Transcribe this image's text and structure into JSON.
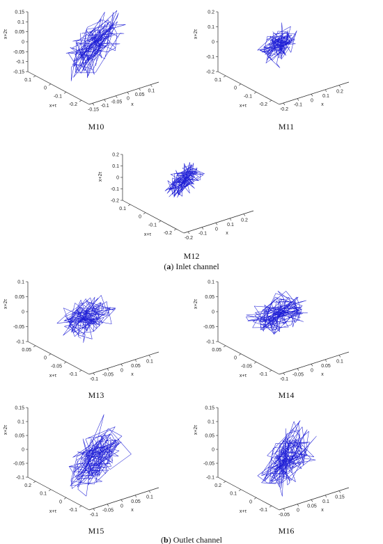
{
  "colors": {
    "trajectory": "#1f1fd6",
    "axes": "#222222"
  },
  "group_captions": [
    {
      "letter": "a",
      "text": "Inlet channel"
    },
    {
      "letter": "b",
      "text": "Outlet channel"
    }
  ],
  "chart_data": [
    {
      "type": "scatter",
      "subtype": "3d-phase-space-line",
      "panel_label": "M10",
      "xlabel": "x",
      "ylabel": "x+τ",
      "zlabel": "x+2τ",
      "x_ticks": [
        "-0.15",
        "-0.1",
        "-0.05",
        "0",
        "0.05",
        "0.1"
      ],
      "y_ticks": [
        "-0.2",
        "-0.1",
        "0",
        "0.1"
      ],
      "z_ticks": [
        "-0.15",
        "-0.1",
        "-0.05",
        "0",
        "0.05",
        "0.1",
        "0.15"
      ],
      "xlim": [
        -0.15,
        0.1
      ],
      "ylim": [
        -0.2,
        0.15
      ],
      "zlim": [
        -0.15,
        0.15
      ],
      "attractor": {
        "center": [
          -0.02,
          -0.02,
          0.0
        ],
        "spread": [
          0.07,
          0.07,
          0.09
        ],
        "points": 170
      }
    },
    {
      "type": "scatter",
      "subtype": "3d-phase-space-line",
      "panel_label": "M11",
      "xlabel": "x",
      "ylabel": "x+τ",
      "zlabel": "x+2τ",
      "x_ticks": [
        "-0.2",
        "-0.1",
        "0",
        "0.1",
        "0.2"
      ],
      "y_ticks": [
        "-0.2",
        "-0.1",
        "0",
        "0.1"
      ],
      "z_ticks": [
        "-0.2",
        "-0.1",
        "0",
        "0.1",
        "0.2"
      ],
      "xlim": [
        -0.2,
        0.2
      ],
      "ylim": [
        -0.2,
        0.15
      ],
      "zlim": [
        -0.2,
        0.2
      ],
      "attractor": {
        "center": [
          0.0,
          0.0,
          0.0
        ],
        "spread": [
          0.06,
          0.05,
          0.07
        ],
        "points": 150
      }
    },
    {
      "type": "scatter",
      "subtype": "3d-phase-space-line",
      "panel_label": "M12",
      "xlabel": "x",
      "ylabel": "x+τ",
      "zlabel": "x+2τ",
      "x_ticks": [
        "-0.2",
        "-0.1",
        "0",
        "0.1",
        "0.2"
      ],
      "y_ticks": [
        "-0.2",
        "-0.1",
        "0",
        "0.1"
      ],
      "z_ticks": [
        "-0.2",
        "-0.1",
        "0",
        "0.1",
        "0.2"
      ],
      "xlim": [
        -0.2,
        0.2
      ],
      "ylim": [
        -0.2,
        0.15
      ],
      "zlim": [
        -0.2,
        0.2
      ],
      "attractor": {
        "center": [
          0.0,
          0.0,
          0.0
        ],
        "spread": [
          0.06,
          0.05,
          0.08
        ],
        "points": 150
      }
    },
    {
      "type": "scatter",
      "subtype": "3d-phase-space-line",
      "panel_label": "M13",
      "xlabel": "x",
      "ylabel": "x+τ",
      "zlabel": "x+2τ",
      "x_ticks": [
        "-0.1",
        "-0.05",
        "0",
        "0.05",
        "0.1"
      ],
      "y_ticks": [
        "-0.1",
        "-0.05",
        "0",
        "0.05"
      ],
      "z_ticks": [
        "-0.1",
        "-0.05",
        "0",
        "0.05",
        "0.1"
      ],
      "xlim": [
        -0.1,
        0.1
      ],
      "ylim": [
        -0.1,
        0.07
      ],
      "zlim": [
        -0.1,
        0.1
      ],
      "attractor": {
        "center": [
          0.0,
          0.0,
          -0.01
        ],
        "spread": [
          0.05,
          0.04,
          0.035
        ],
        "points": 160
      }
    },
    {
      "type": "scatter",
      "subtype": "3d-phase-space-line",
      "panel_label": "M14",
      "xlabel": "x",
      "ylabel": "x+τ",
      "zlabel": "x+2τ",
      "x_ticks": [
        "-0.1",
        "-0.05",
        "0",
        "0.05",
        "0.1"
      ],
      "y_ticks": [
        "-0.1",
        "-0.05",
        "0",
        "0.05"
      ],
      "z_ticks": [
        "-0.1",
        "-0.05",
        "0",
        "0.05",
        "0.1"
      ],
      "xlim": [
        -0.1,
        0.1
      ],
      "ylim": [
        -0.1,
        0.07
      ],
      "zlim": [
        -0.1,
        0.1
      ],
      "attractor": {
        "center": [
          0.0,
          0.0,
          0.0
        ],
        "spread": [
          0.05,
          0.04,
          0.03
        ],
        "points": 170
      }
    },
    {
      "type": "scatter",
      "subtype": "3d-phase-space-line",
      "panel_label": "M15",
      "xlabel": "x",
      "ylabel": "x+τ",
      "zlabel": "x+2τ",
      "x_ticks": [
        "-0.1",
        "-0.05",
        "0",
        "0.05",
        "0.1"
      ],
      "y_ticks": [
        "-0.1",
        "0",
        "0.1",
        "0.2"
      ],
      "z_ticks": [
        "-0.1",
        "-0.05",
        "0",
        "0.05",
        "0.1",
        "0.15"
      ],
      "xlim": [
        -0.1,
        0.1
      ],
      "ylim": [
        -0.1,
        0.2
      ],
      "zlim": [
        -0.1,
        0.15
      ],
      "attractor": {
        "center": [
          -0.01,
          0.02,
          0.0
        ],
        "spread": [
          0.05,
          0.06,
          0.075
        ],
        "points": 180
      }
    },
    {
      "type": "scatter",
      "subtype": "3d-phase-space-line",
      "panel_label": "M16",
      "xlabel": "x",
      "ylabel": "x+τ",
      "zlabel": "x+2τ",
      "x_ticks": [
        "-0.05",
        "0",
        "0.05",
        "0.1",
        "0.15"
      ],
      "y_ticks": [
        "-0.1",
        "0",
        "0.1",
        "0.2"
      ],
      "z_ticks": [
        "-0.1",
        "-0.05",
        "0",
        "0.05",
        "0.1",
        "0.15"
      ],
      "xlim": [
        -0.1,
        0.15
      ],
      "ylim": [
        -0.1,
        0.2
      ],
      "zlim": [
        -0.1,
        0.15
      ],
      "attractor": {
        "center": [
          0.02,
          0.02,
          0.0
        ],
        "spread": [
          0.06,
          0.06,
          0.07
        ],
        "points": 180
      }
    }
  ]
}
